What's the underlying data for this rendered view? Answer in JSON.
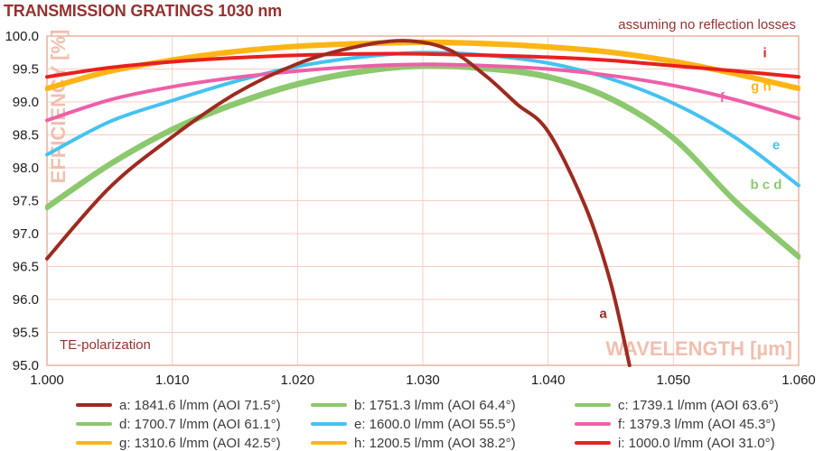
{
  "page": {
    "title": "TRANSMISSION GRATINGS 1030 nm",
    "annotation_top_right": "assuming no reflection losses"
  },
  "chart_data": {
    "type": "line",
    "title": "TRANSMISSION GRATINGS 1030 nm",
    "xlabel": "WAVELENGTH [µm]",
    "ylabel": "EFFICIENCY [%]",
    "xlim": [
      1.0,
      1.06
    ],
    "ylim": [
      95.0,
      100.0
    ],
    "x_ticks": [
      "1.000",
      "1.010",
      "1.020",
      "1.030",
      "1.040",
      "1.050",
      "1.060"
    ],
    "y_ticks": [
      "100.0",
      "99.5",
      "99.0",
      "98.5",
      "98.0",
      "97.5",
      "97.0",
      "96.5",
      "96.0",
      "95.5",
      "95.0"
    ],
    "grid": true,
    "legend_position": "bottom",
    "notes": {
      "top_right": "assuming no reflection losses",
      "bottom_left": "TE-polarization"
    },
    "colors": {
      "heading": "#963130",
      "watermark": "#f2beae",
      "grid": "#f5cdc1",
      "frame": "#ecb2a1",
      "axis_text": "#1b1b1b",
      "legend_text": "#3a3a3a"
    },
    "series": [
      {
        "id": "a",
        "label": "a: 1841.6 l/mm (AOI 71.5°)",
        "lines_per_mm": 1841.6,
        "aoi_deg": 71.5,
        "color": "#9c2b20",
        "points": [
          [
            1.0,
            96.62
          ],
          [
            1.005,
            97.7
          ],
          [
            1.01,
            98.47
          ],
          [
            1.015,
            99.12
          ],
          [
            1.02,
            99.58
          ],
          [
            1.0245,
            99.83
          ],
          [
            1.0285,
            99.93
          ],
          [
            1.032,
            99.8
          ],
          [
            1.035,
            99.4
          ],
          [
            1.0375,
            98.97
          ],
          [
            1.04,
            98.55
          ],
          [
            1.043,
            97.4
          ],
          [
            1.045,
            96.25
          ],
          [
            1.0465,
            95.0
          ]
        ]
      },
      {
        "id": "b",
        "label": "b: 1751.3 l/mm (AOI 64.4°)",
        "lines_per_mm": 1751.3,
        "aoi_deg": 64.4,
        "color": "#8cc86e",
        "points": [
          [
            1.0,
            97.42
          ],
          [
            1.005,
            98.07
          ],
          [
            1.01,
            98.6
          ],
          [
            1.015,
            98.99
          ],
          [
            1.02,
            99.29
          ],
          [
            1.025,
            99.48
          ],
          [
            1.03,
            99.57
          ],
          [
            1.035,
            99.53
          ],
          [
            1.04,
            99.4
          ],
          [
            1.045,
            99.07
          ],
          [
            1.05,
            98.47
          ],
          [
            1.055,
            97.5
          ],
          [
            1.06,
            96.67
          ]
        ]
      },
      {
        "id": "c",
        "label": "c: 1739.1 l/mm (AOI 63.6°)",
        "lines_per_mm": 1739.1,
        "aoi_deg": 63.6,
        "color": "#8cc86e",
        "points": [
          [
            1.0,
            97.4
          ],
          [
            1.005,
            98.05
          ],
          [
            1.01,
            98.58
          ],
          [
            1.015,
            98.97
          ],
          [
            1.02,
            99.27
          ],
          [
            1.025,
            99.46
          ],
          [
            1.03,
            99.55
          ],
          [
            1.035,
            99.51
          ],
          [
            1.04,
            99.38
          ],
          [
            1.045,
            99.05
          ],
          [
            1.05,
            98.45
          ],
          [
            1.055,
            97.48
          ],
          [
            1.06,
            96.65
          ]
        ]
      },
      {
        "id": "d",
        "label": "d: 1700.7 l/mm (AOI 61.1°)",
        "lines_per_mm": 1700.7,
        "aoi_deg": 61.1,
        "color": "#8cc86e",
        "points": [
          [
            1.0,
            97.38
          ],
          [
            1.005,
            98.03
          ],
          [
            1.01,
            98.56
          ],
          [
            1.015,
            98.95
          ],
          [
            1.02,
            99.25
          ],
          [
            1.025,
            99.44
          ],
          [
            1.03,
            99.53
          ],
          [
            1.035,
            99.49
          ],
          [
            1.04,
            99.36
          ],
          [
            1.045,
            99.03
          ],
          [
            1.05,
            98.43
          ],
          [
            1.055,
            97.46
          ],
          [
            1.06,
            96.63
          ]
        ]
      },
      {
        "id": "e",
        "label": "e: 1600.0 l/mm (AOI 55.5°)",
        "lines_per_mm": 1600.0,
        "aoi_deg": 55.5,
        "color": "#45c2f0",
        "points": [
          [
            1.0,
            98.2
          ],
          [
            1.005,
            98.7
          ],
          [
            1.01,
            99.02
          ],
          [
            1.015,
            99.31
          ],
          [
            1.02,
            99.54
          ],
          [
            1.025,
            99.68
          ],
          [
            1.03,
            99.75
          ],
          [
            1.035,
            99.71
          ],
          [
            1.04,
            99.59
          ],
          [
            1.045,
            99.35
          ],
          [
            1.05,
            98.98
          ],
          [
            1.055,
            98.45
          ],
          [
            1.06,
            97.73
          ]
        ]
      },
      {
        "id": "f",
        "label": "f: 1379.3 l/mm (AOI 45.3°)",
        "lines_per_mm": 1379.3,
        "aoi_deg": 45.3,
        "color": "#ee5fa7",
        "points": [
          [
            1.0,
            98.72
          ],
          [
            1.005,
            99.03
          ],
          [
            1.01,
            99.23
          ],
          [
            1.015,
            99.37
          ],
          [
            1.02,
            99.47
          ],
          [
            1.025,
            99.54
          ],
          [
            1.03,
            99.57
          ],
          [
            1.035,
            99.55
          ],
          [
            1.04,
            99.5
          ],
          [
            1.045,
            99.4
          ],
          [
            1.05,
            99.25
          ],
          [
            1.055,
            99.03
          ],
          [
            1.06,
            98.75
          ]
        ]
      },
      {
        "id": "g",
        "label": "g: 1310.6 l/mm (AOI 42.5°)",
        "lines_per_mm": 1310.6,
        "aoi_deg": 42.5,
        "color": "#fdb515",
        "points": [
          [
            1.0,
            99.22
          ],
          [
            1.005,
            99.48
          ],
          [
            1.01,
            99.65
          ],
          [
            1.015,
            99.78
          ],
          [
            1.02,
            99.86
          ],
          [
            1.025,
            99.9
          ],
          [
            1.03,
            99.92
          ],
          [
            1.035,
            99.9
          ],
          [
            1.04,
            99.85
          ],
          [
            1.045,
            99.77
          ],
          [
            1.05,
            99.63
          ],
          [
            1.055,
            99.44
          ],
          [
            1.06,
            99.22
          ]
        ]
      },
      {
        "id": "h",
        "label": "h: 1200.5 l/mm (AOI 38.2°)",
        "lines_per_mm": 1200.5,
        "aoi_deg": 38.2,
        "color": "#fdb515",
        "points": [
          [
            1.0,
            99.19
          ],
          [
            1.005,
            99.45
          ],
          [
            1.01,
            99.62
          ],
          [
            1.015,
            99.75
          ],
          [
            1.02,
            99.83
          ],
          [
            1.025,
            99.87
          ],
          [
            1.03,
            99.89
          ],
          [
            1.035,
            99.87
          ],
          [
            1.04,
            99.82
          ],
          [
            1.045,
            99.74
          ],
          [
            1.05,
            99.6
          ],
          [
            1.055,
            99.41
          ],
          [
            1.06,
            99.19
          ]
        ]
      },
      {
        "id": "i",
        "label": "i: 1000.0 l/mm (AOI 31.0°)",
        "lines_per_mm": 1000.0,
        "aoi_deg": 31.0,
        "color": "#e9201f",
        "points": [
          [
            1.0,
            99.38
          ],
          [
            1.005,
            99.52
          ],
          [
            1.01,
            99.61
          ],
          [
            1.015,
            99.67
          ],
          [
            1.02,
            99.71
          ],
          [
            1.025,
            99.73
          ],
          [
            1.03,
            99.73
          ],
          [
            1.035,
            99.71
          ],
          [
            1.04,
            99.68
          ],
          [
            1.045,
            99.63
          ],
          [
            1.05,
            99.55
          ],
          [
            1.055,
            99.47
          ],
          [
            1.06,
            99.38
          ]
        ]
      }
    ],
    "curve_labels": [
      {
        "text": "a",
        "color": "#9c2b20",
        "x": 1.0444,
        "y": 95.72
      },
      {
        "text": "b c d",
        "color": "#8cc86e",
        "x": 1.0574,
        "y": 97.68
      },
      {
        "text": "e",
        "color": "#45c2f0",
        "x": 1.0582,
        "y": 98.28
      },
      {
        "text": "f",
        "color": "#ee5fa7",
        "x": 1.0539,
        "y": 99.0
      },
      {
        "text": "g h",
        "color": "#fdb515",
        "x": 1.057,
        "y": 99.17
      },
      {
        "text": "i",
        "color": "#e9201f",
        "x": 1.0573,
        "y": 99.68
      }
    ]
  }
}
